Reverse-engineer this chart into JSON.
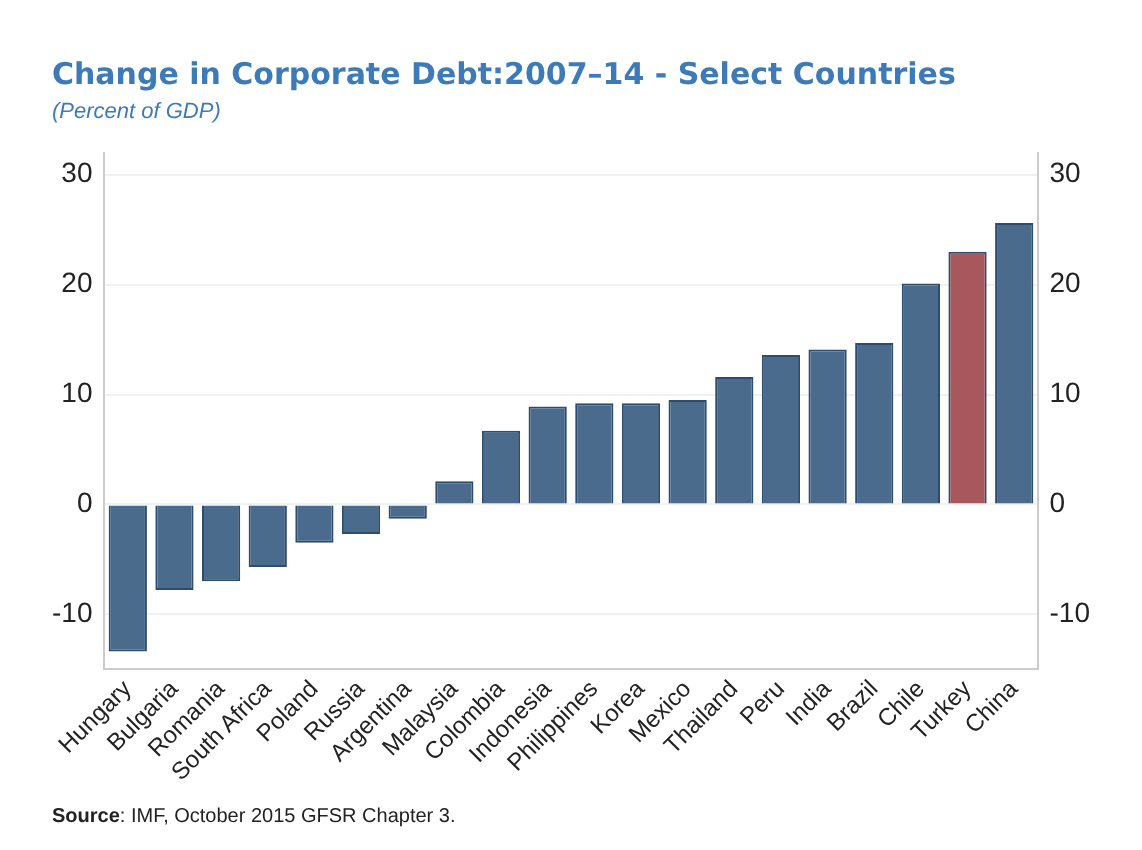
{
  "chart_data": {
    "type": "bar",
    "title": "Change in Corporate Debt:2007–14 - Select Countries",
    "subtitle": "(Percent of GDP)",
    "categories": [
      "Hungary",
      "Bulgaria",
      "Romania",
      "South Africa",
      "Poland",
      "Russia",
      "Argentina",
      "Malaysia",
      "Colombia",
      "Indonesia",
      "Philippines",
      "Korea",
      "Mexico",
      "Thailand",
      "Peru",
      "India",
      "Brazil",
      "Chile",
      "Turkey",
      "China"
    ],
    "values": [
      -13.4,
      -7.8,
      -7.0,
      -5.7,
      -3.5,
      -2.7,
      -1.3,
      2.1,
      6.7,
      8.9,
      9.2,
      9.2,
      9.5,
      11.6,
      13.6,
      14.1,
      14.7,
      20.1,
      23.0,
      25.6
    ],
    "colors": [
      "#4a6b8c",
      "#4a6b8c",
      "#4a6b8c",
      "#4a6b8c",
      "#4a6b8c",
      "#4a6b8c",
      "#4a6b8c",
      "#4a6b8c",
      "#4a6b8c",
      "#4a6b8c",
      "#4a6b8c",
      "#4a6b8c",
      "#4a6b8c",
      "#4a6b8c",
      "#4a6b8c",
      "#4a6b8c",
      "#4a6b8c",
      "#4a6b8c",
      "#a8585c",
      "#4a6b8c"
    ],
    "ylim": [
      -15,
      32
    ],
    "yticks": [
      -10,
      0,
      10,
      20,
      30
    ],
    "y2lim": [
      -15,
      32
    ],
    "y2ticks": [
      -10,
      0,
      10,
      20,
      30
    ],
    "grid": "y",
    "legend": false,
    "annotations": [
      "Source: IMF, October 2015 GFSR Chapter 3."
    ]
  }
}
